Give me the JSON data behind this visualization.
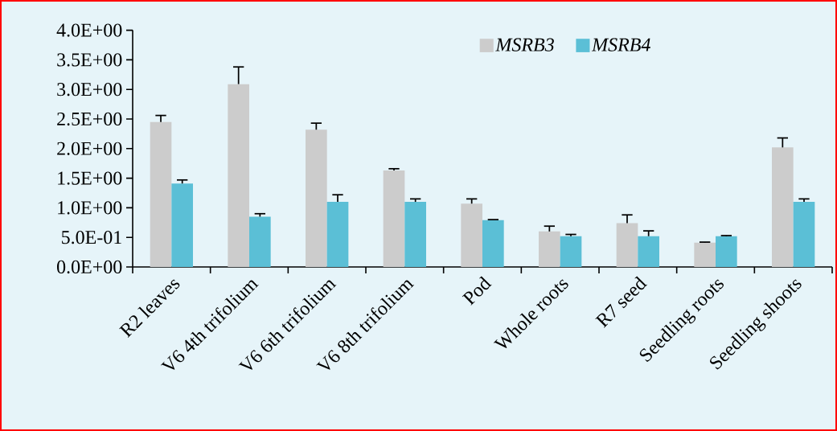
{
  "chart_data": {
    "type": "bar",
    "categories": [
      "R2 leaves",
      "V6 4th trifolium",
      "V6 6th trifolium",
      "V6 8th trifolium",
      "Pod",
      "Whole roots",
      "R7 seed",
      "Seedling roots",
      "Seedling shoots"
    ],
    "series": [
      {
        "name": "MSRB3",
        "color": "#cccccc",
        "values": [
          2.45,
          3.09,
          2.32,
          1.63,
          1.07,
          0.6,
          0.74,
          0.41,
          2.02
        ],
        "errors": [
          [
            2.45,
            2.56
          ],
          [
            3.09,
            3.38
          ],
          [
            2.32,
            2.43
          ],
          [
            1.63,
            1.66
          ],
          [
            1.07,
            1.15
          ],
          [
            0.6,
            0.69
          ],
          [
            0.74,
            0.88
          ],
          [
            0.41,
            0.42
          ],
          [
            2.02,
            2.18
          ]
        ]
      },
      {
        "name": "MSRB4",
        "color": "#5bbfd6",
        "values": [
          1.41,
          0.85,
          1.1,
          1.1,
          0.79,
          0.52,
          0.52,
          0.52,
          1.1
        ],
        "errors": [
          [
            1.41,
            1.47
          ],
          [
            0.85,
            0.9
          ],
          [
            1.1,
            1.22
          ],
          [
            1.1,
            1.15
          ],
          [
            0.79,
            0.8
          ],
          [
            0.52,
            0.55
          ],
          [
            0.52,
            0.61
          ],
          [
            0.52,
            0.53
          ],
          [
            1.1,
            1.15
          ]
        ]
      }
    ],
    "ylim": [
      0,
      4
    ],
    "yticks": [
      {
        "value": 0,
        "label": "0.0E+00"
      },
      {
        "value": 0.5,
        "label": "5.0E-01"
      },
      {
        "value": 1,
        "label": "1.0E+00"
      },
      {
        "value": 1.5,
        "label": "1.5E+00"
      },
      {
        "value": 2,
        "label": "2.0E+00"
      },
      {
        "value": 2.5,
        "label": "2.5E+00"
      },
      {
        "value": 3,
        "label": "3.0E+00"
      },
      {
        "value": 3.5,
        "label": "3.5E+00"
      },
      {
        "value": 4,
        "label": "4.0E+00"
      }
    ],
    "legend": "top",
    "grid": false
  }
}
